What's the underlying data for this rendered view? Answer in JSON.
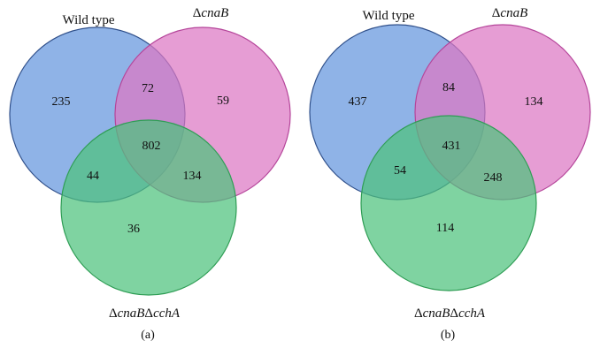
{
  "panels": [
    {
      "caption": "(a)",
      "sets": {
        "a": {
          "label": "Wild type",
          "color": "#6f9ee0",
          "stroke": "#2f4f8a"
        },
        "b": {
          "prefix": "Δ",
          "label": "cnaB",
          "color": "#dd77c4",
          "stroke": "#b5459a"
        },
        "c": {
          "prefix": "Δ",
          "label": "cnaB",
          "prefix2": "Δ",
          "label2": "cchA",
          "color": "#4ec27d",
          "stroke": "#2f9d55"
        }
      },
      "regions": {
        "a_only": "235",
        "ab": "72",
        "b_only": "59",
        "abc": "802",
        "ac": "44",
        "bc": "134",
        "c_only": "36"
      }
    },
    {
      "caption": "(b)",
      "sets": {
        "a": {
          "label": "Wild type",
          "color": "#6f9ee0",
          "stroke": "#2f4f8a"
        },
        "b": {
          "prefix": "Δ",
          "label": "cnaB",
          "color": "#dd77c4",
          "stroke": "#b5459a"
        },
        "c": {
          "prefix": "Δ",
          "label": "cnaB",
          "prefix2": "Δ",
          "label2": "cchA",
          "color": "#4ec27d",
          "stroke": "#2f9d55"
        }
      },
      "regions": {
        "a_only": "437",
        "ab": "84",
        "b_only": "134",
        "abc": "431",
        "ac": "54",
        "bc": "248",
        "c_only": "114"
      }
    }
  ]
}
